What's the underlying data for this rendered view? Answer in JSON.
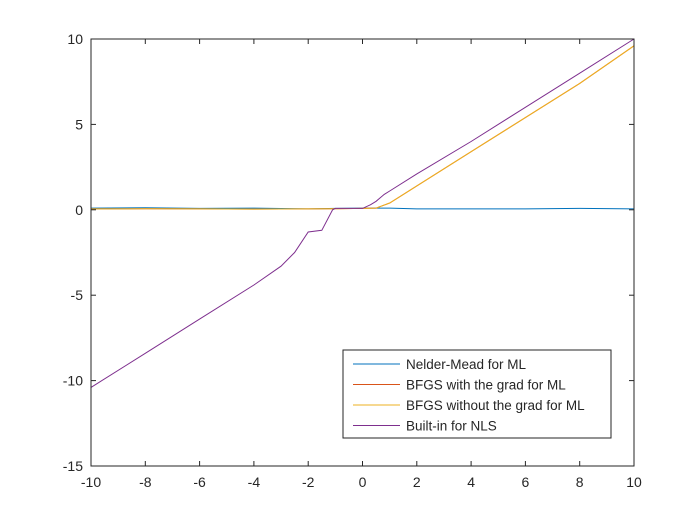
{
  "chart_data": {
    "type": "line",
    "title": "",
    "xlabel": "",
    "ylabel": "",
    "xlim": [
      -10,
      10
    ],
    "ylim": [
      -15,
      10
    ],
    "xticks": [
      -10,
      -8,
      -6,
      -4,
      -2,
      0,
      2,
      4,
      6,
      8,
      10
    ],
    "yticks": [
      10,
      5,
      0,
      -5,
      -10,
      -15
    ],
    "grid": false,
    "legend_position": "bottom-right",
    "series": [
      {
        "name": "Nelder-Mead for ML",
        "color": "#0072BD",
        "x": [
          -10,
          -8,
          -6,
          -4,
          -2,
          -1,
          0,
          1,
          2,
          4,
          6,
          8,
          10
        ],
        "y": [
          0.1,
          0.12,
          0.08,
          0.1,
          0.05,
          0.08,
          0.1,
          0.1,
          0.05,
          0.05,
          0.05,
          0.08,
          0.05
        ]
      },
      {
        "name": "BFGS with the grad for ML",
        "color": "#D95319",
        "x": [
          -10,
          -8,
          -6,
          -4,
          -2,
          -1,
          0,
          0.5,
          1,
          2,
          4,
          6,
          8,
          10
        ],
        "y": [
          0.05,
          0.06,
          0.05,
          0.04,
          0.05,
          0.06,
          0.08,
          0.1,
          0.4,
          1.4,
          3.4,
          5.4,
          7.4,
          9.6
        ]
      },
      {
        "name": "BFGS without the grad for ML",
        "color": "#EDB120",
        "x": [
          -10,
          -8,
          -6,
          -4,
          -2,
          -1,
          0,
          0.5,
          1,
          2,
          4,
          6,
          8,
          10
        ],
        "y": [
          0.05,
          0.06,
          0.05,
          0.04,
          0.05,
          0.06,
          0.08,
          0.1,
          0.4,
          1.4,
          3.4,
          5.4,
          7.4,
          9.6
        ]
      },
      {
        "name": "Built-in for NLS",
        "color": "#7E2F8E",
        "x": [
          -10,
          -8,
          -6,
          -4,
          -3,
          -2.5,
          -2,
          -1.5,
          -1.1,
          -1,
          0,
          0.3,
          0.5,
          0.8,
          1,
          2,
          4,
          6,
          8,
          10
        ],
        "y": [
          -10.4,
          -8.4,
          -6.4,
          -4.4,
          -3.3,
          -2.5,
          -1.3,
          -1.2,
          0.0,
          0.08,
          0.08,
          0.3,
          0.5,
          0.9,
          1.1,
          2.1,
          4.0,
          6.0,
          8.0,
          10.0
        ]
      }
    ]
  }
}
